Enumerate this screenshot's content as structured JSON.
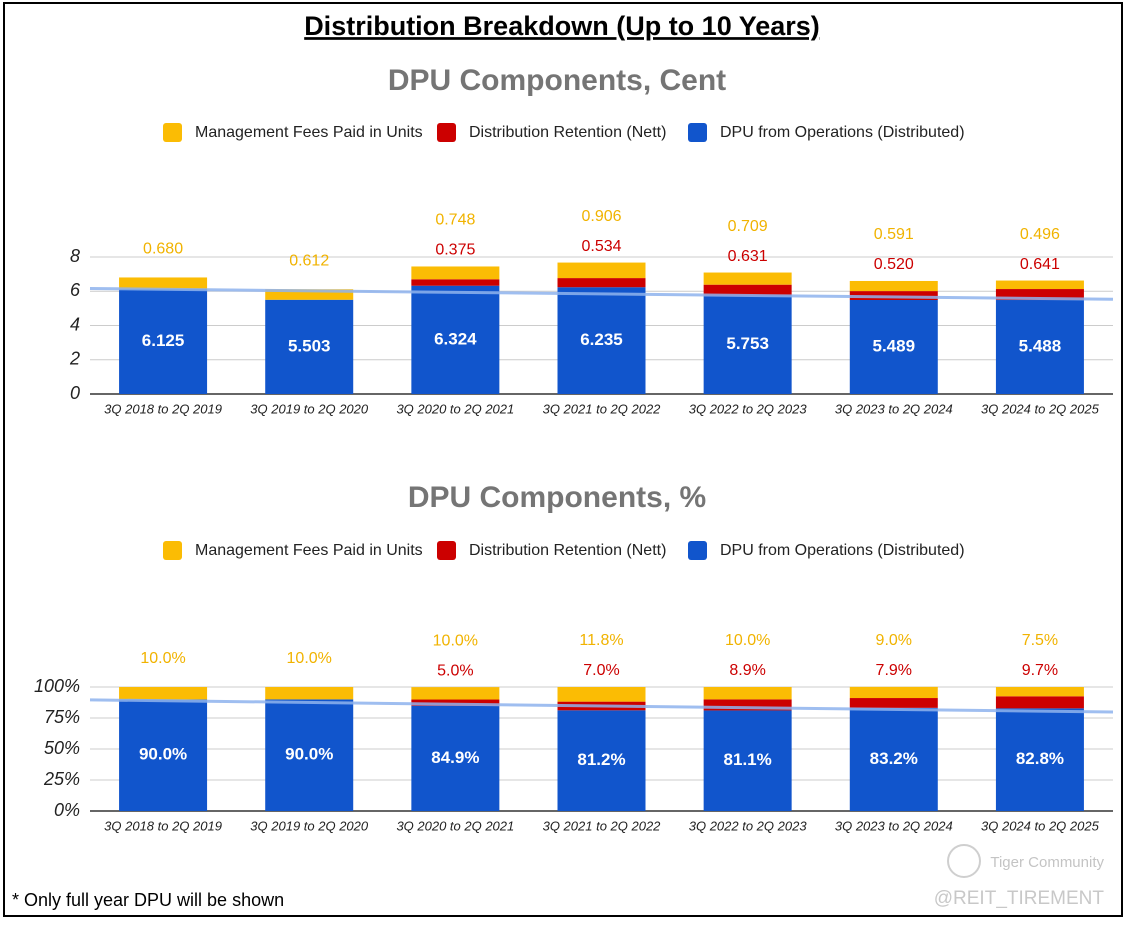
{
  "header": {
    "title": "Distribution Breakdown (Up to 10 Years)"
  },
  "footnote": "* Only full year DPU will be shown",
  "watermark": [
    "Tiger Community",
    "@REIT_TIREMENT"
  ],
  "chart_data": [
    {
      "type": "stacked_bar",
      "title": "DPU Components, Cent",
      "categories": [
        "3Q 2018 to 2Q 2019",
        "3Q 2019 to 2Q 2020",
        "3Q 2020 to 2Q 2021",
        "3Q 2021 to 2Q 2022",
        "3Q 2022 to 2Q 2023",
        "3Q 2023 to 2Q 2024",
        "3Q 2024 to 2Q 2025"
      ],
      "series": [
        {
          "name": "Management Fees Paid in Units",
          "color": "#fbbc04",
          "label_color": "#f1b300",
          "values": [
            0.68,
            0.612,
            0.748,
            0.906,
            0.709,
            0.591,
            0.496
          ],
          "value_labels": [
            "0.680",
            "0.612",
            "0.748",
            "0.906",
            "0.709",
            "0.591",
            "0.496"
          ]
        },
        {
          "name": "Distribution Retention (Nett)",
          "color": "#cc0000",
          "label_color": "#cc0000",
          "values": [
            null,
            null,
            0.375,
            0.534,
            0.631,
            0.52,
            0.641
          ],
          "value_labels": [
            null,
            null,
            "0.375",
            "0.534",
            "0.631",
            "0.520",
            "0.641"
          ]
        },
        {
          "name": "DPU from Operations (Distributed)",
          "color": "#1155cc",
          "label_color": "#ffffff",
          "values": [
            6.125,
            5.503,
            6.324,
            6.235,
            5.753,
            5.489,
            5.488
          ],
          "value_labels": [
            "6.125",
            "5.503",
            "6.324",
            "6.235",
            "5.753",
            "5.489",
            "5.488"
          ]
        }
      ],
      "ylim": [
        0,
        8
      ],
      "yticks": [
        0,
        2,
        4,
        6,
        8
      ],
      "grid": true,
      "trendline": true,
      "trendline_color": "#8fb3ee"
    },
    {
      "type": "stacked_bar",
      "title": "DPU Components, %",
      "categories": [
        "3Q 2018 to 2Q 2019",
        "3Q 2019 to 2Q 2020",
        "3Q 2020 to 2Q 2021",
        "3Q 2021 to 2Q 2022",
        "3Q 2022 to 2Q 2023",
        "3Q 2023 to 2Q 2024",
        "3Q 2024 to 2Q 2025"
      ],
      "series": [
        {
          "name": "Management Fees Paid in Units",
          "color": "#fbbc04",
          "label_color": "#f1b300",
          "values": [
            10,
            10,
            10,
            11.8,
            10,
            9,
            7.5
          ],
          "value_labels": [
            "10.0%",
            "10.0%",
            "10.0%",
            "11.8%",
            "10.0%",
            "9.0%",
            "7.5%"
          ]
        },
        {
          "name": "Distribution Retention (Nett)",
          "color": "#cc0000",
          "label_color": "#cc0000",
          "values": [
            null,
            null,
            5,
            7,
            8.9,
            7.9,
            9.7
          ],
          "value_labels": [
            null,
            null,
            "5.0%",
            "7.0%",
            "8.9%",
            "7.9%",
            "9.7%"
          ]
        },
        {
          "name": "DPU from Operations (Distributed)",
          "color": "#1155cc",
          "label_color": "#ffffff",
          "values": [
            90,
            90,
            84.9,
            81.2,
            81.1,
            83.2,
            82.8
          ],
          "value_labels": [
            "90.0%",
            "90.0%",
            "84.9%",
            "81.2%",
            "81.1%",
            "83.2%",
            "82.8%"
          ]
        }
      ],
      "ylim": [
        0,
        100
      ],
      "yticks": [
        {
          "value": 0,
          "label": "0%"
        },
        {
          "value": 25,
          "label": "25%"
        },
        {
          "value": 50,
          "label": "50%"
        },
        {
          "value": 75,
          "label": "75%"
        },
        {
          "value": 100,
          "label": "100%"
        }
      ],
      "grid": true,
      "trendline": true,
      "trendline_color": "#8fb3ee"
    }
  ]
}
